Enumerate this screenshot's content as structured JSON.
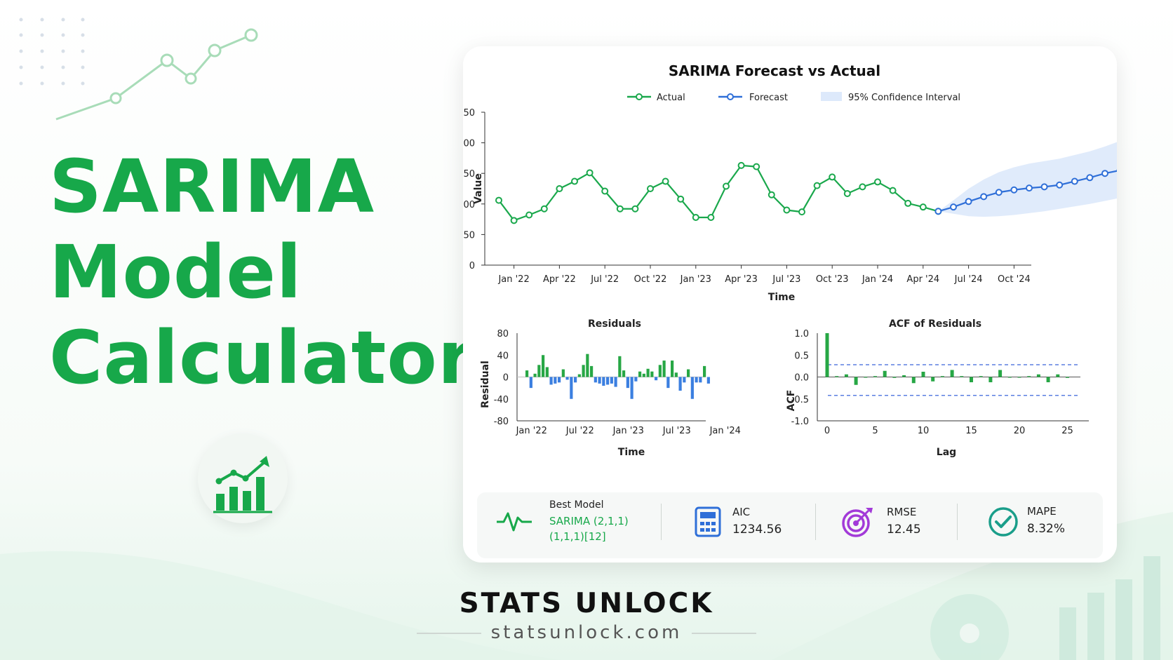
{
  "hero": {
    "title_lines": [
      "SARIMA",
      "Model",
      "Calculator"
    ]
  },
  "brand": {
    "name": "STATS UNLOCK",
    "url": "statsunlock.com"
  },
  "colors": {
    "brand_green": "#17a84a",
    "actual_line": "#1aa84c",
    "forecast_line": "#2f6fd8",
    "confidence_band": "#dde9fb",
    "positive_bar": "#27a745",
    "negative_bar": "#3b7fe0",
    "acf_bound": "#5b7fe0"
  },
  "stats": {
    "best_model": {
      "label": "Best Model",
      "value_line1": "SARIMA (2,1,1)",
      "value_line2": "(1,1,1)[12]",
      "icon": "pulse-icon"
    },
    "aic": {
      "label": "AIC",
      "value": "1234.56",
      "icon": "calculator-icon"
    },
    "rmse": {
      "label": "RMSE",
      "value": "12.45",
      "icon": "target-icon"
    },
    "mape": {
      "label": "MAPE",
      "value": "8.32%",
      "icon": "check-circle-icon"
    }
  },
  "chart_data": [
    {
      "type": "line",
      "title": "SARIMA Forecast vs Actual",
      "xlabel": "Time",
      "ylabel": "Value",
      "ylim": [
        0,
        250
      ],
      "yticks": [
        0,
        50,
        100,
        150,
        200,
        250
      ],
      "xtick_labels": [
        "Jan '22",
        "Apr '22",
        "Jul '22",
        "Oct '22",
        "Jan '23",
        "Apr '23",
        "Jul '23",
        "Oct '23",
        "Jan '24",
        "Apr '24",
        "Jul '24",
        "Oct '24"
      ],
      "legend": [
        "Actual",
        "Forecast",
        "95% Confidence Interval"
      ],
      "legend_position": "top-center",
      "series": [
        {
          "name": "Actual",
          "start": "Dec '21",
          "frequency": "monthly",
          "values": [
            106,
            73,
            82,
            92,
            125,
            137,
            151,
            121,
            92,
            92,
            125,
            137,
            108,
            78,
            78,
            129,
            163,
            161,
            115,
            90,
            87,
            130,
            144,
            117,
            128,
            136,
            122,
            101,
            95,
            88
          ]
        },
        {
          "name": "Forecast",
          "start": "Nov '23",
          "frequency": "monthly",
          "values": [
            88,
            95,
            104,
            112,
            119,
            123,
            126,
            128,
            131,
            137,
            143,
            150,
            155,
            160,
            166,
            172
          ]
        }
      ],
      "confidence_interval": {
        "name": "95% Confidence Interval",
        "lower": [
          88,
          84,
          80,
          79,
          80,
          82,
          85,
          88,
          92,
          96,
          100,
          105,
          110,
          115,
          120,
          122
        ],
        "upper": [
          88,
          106,
          125,
          140,
          152,
          160,
          166,
          170,
          174,
          180,
          186,
          194,
          203,
          212,
          220,
          228
        ]
      }
    },
    {
      "type": "bar",
      "title": "Residuals",
      "xlabel": "Time",
      "ylabel": "Residual",
      "ylim": [
        -80,
        80
      ],
      "yticks": [
        80,
        40,
        0,
        -40,
        -80
      ],
      "xtick_labels": [
        "Jan '22",
        "Jul '22",
        "Jan '23",
        "Jul '23",
        "Jan '24"
      ],
      "values": [
        12,
        -20,
        6,
        22,
        40,
        18,
        -14,
        -12,
        -10,
        14,
        -5,
        -40,
        -10,
        5,
        22,
        42,
        20,
        -10,
        -12,
        -16,
        -14,
        -12,
        -18,
        38,
        12,
        -20,
        -40,
        -8,
        10,
        6,
        15,
        10,
        -6,
        22,
        30,
        -20,
        30,
        8,
        -25,
        -10,
        14,
        -40,
        -10,
        -10,
        20,
        -12
      ]
    },
    {
      "type": "bar",
      "title": "ACF of Residuals",
      "xlabel": "Lag",
      "ylabel": "ACF",
      "ylim": [
        -1.0,
        1.0
      ],
      "yticks": [
        1.0,
        0.5,
        0.0,
        -0.5,
        -1.0
      ],
      "xticks": [
        0,
        5,
        10,
        15,
        20,
        25
      ],
      "values": [
        1.0,
        0.02,
        0.06,
        -0.18,
        0.0,
        0.02,
        0.14,
        -0.02,
        0.04,
        -0.14,
        0.12,
        -0.1,
        0.02,
        0.16,
        0.02,
        -0.12,
        0.02,
        -0.12,
        0.16,
        0.0,
        0.0,
        0.02,
        0.06,
        -0.12,
        0.06,
        -0.02
      ],
      "confidence_bounds": [
        0.28,
        -0.42
      ]
    }
  ]
}
